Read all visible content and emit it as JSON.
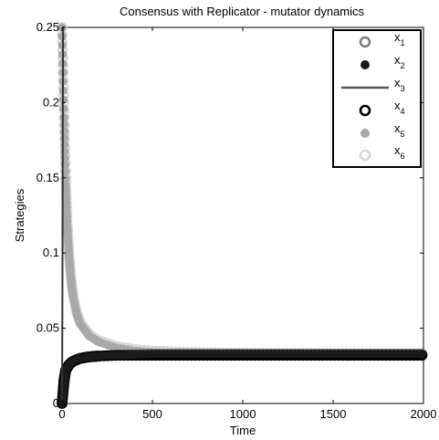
{
  "chart_data": {
    "type": "scatter",
    "title": "Consensus with Replicator - mutator dynamics",
    "xlabel": "Time",
    "ylabel": "Strategies",
    "xlim": [
      0,
      2000
    ],
    "ylim": [
      0,
      0.25
    ],
    "x_ticks": [
      0,
      500,
      1000,
      1500,
      2000
    ],
    "x_tick_labels": [
      "0",
      "500",
      "1000",
      "1500",
      "2000"
    ],
    "y_ticks": [
      0,
      0.05,
      0.1,
      0.15,
      0.2,
      0.25
    ],
    "y_tick_labels": [
      "0",
      "0.05",
      "0.1",
      "0.15",
      "0.2",
      "0.25"
    ],
    "grid": false,
    "legend_position": "top-right",
    "series": [
      {
        "name": "x1",
        "marker": "open-circle",
        "color": "#7a7a7a",
        "x": [
          0,
          20,
          40,
          60,
          80,
          100,
          120,
          140,
          160,
          180,
          200,
          250,
          300,
          400,
          500,
          700,
          1000,
          1500,
          2000
        ],
        "y": [
          0.0,
          0.022,
          0.026,
          0.028,
          0.029,
          0.03,
          0.0305,
          0.031,
          0.031,
          0.0315,
          0.0315,
          0.032,
          0.032,
          0.0325,
          0.033,
          0.033,
          0.033,
          0.033,
          0.033
        ]
      },
      {
        "name": "x2",
        "marker": "filled-circle",
        "color": "#1a1a1a",
        "x": [
          0,
          20,
          40,
          60,
          80,
          100,
          120,
          140,
          160,
          180,
          200,
          250,
          300,
          400,
          500,
          700,
          1000,
          1500,
          2000
        ],
        "y": [
          0.0,
          0.022,
          0.026,
          0.028,
          0.029,
          0.03,
          0.0305,
          0.031,
          0.031,
          0.0315,
          0.0315,
          0.032,
          0.032,
          0.0325,
          0.033,
          0.033,
          0.033,
          0.033,
          0.033
        ]
      },
      {
        "name": "x3",
        "marker": "line",
        "color": "#333333",
        "x": [
          0,
          2,
          4,
          6,
          8,
          10
        ],
        "y": [
          0.0,
          0.07,
          0.18,
          0.25,
          0.25,
          0.25
        ]
      },
      {
        "name": "x4",
        "marker": "open-circle-bold",
        "color": "#000000",
        "x": [
          0,
          10,
          20,
          40,
          60,
          80,
          100,
          150,
          200,
          300
        ],
        "y": [
          0.0,
          0.015,
          0.022,
          0.026,
          0.028,
          0.029,
          0.03,
          0.031,
          0.0315,
          0.032
        ]
      },
      {
        "name": "x5",
        "marker": "filled-circle",
        "color": "#a8a8a8",
        "x": [
          0,
          10,
          20,
          30,
          40,
          50,
          60,
          80,
          100,
          150,
          200,
          300,
          400,
          500,
          700,
          1000,
          1500,
          2000
        ],
        "y": [
          0.25,
          0.19,
          0.145,
          0.115,
          0.095,
          0.082,
          0.072,
          0.06,
          0.053,
          0.045,
          0.041,
          0.037,
          0.035,
          0.034,
          0.0335,
          0.033,
          0.033,
          0.033
        ]
      },
      {
        "name": "x6",
        "marker": "open-circle",
        "color": "#d8d8d8",
        "x": [
          0,
          10,
          20,
          30,
          40,
          50,
          60,
          80,
          100,
          150,
          200,
          300,
          400,
          500,
          700,
          1000,
          1500,
          2000
        ],
        "y": [
          0.25,
          0.2,
          0.15,
          0.118,
          0.097,
          0.083,
          0.073,
          0.061,
          0.054,
          0.046,
          0.042,
          0.038,
          0.036,
          0.035,
          0.034,
          0.0335,
          0.033,
          0.033
        ]
      }
    ]
  },
  "legend": {
    "labels": [
      "x",
      "x",
      "x",
      "x",
      "x",
      "x"
    ],
    "subscripts": [
      "1",
      "2",
      "3",
      "4",
      "5",
      "6"
    ]
  }
}
